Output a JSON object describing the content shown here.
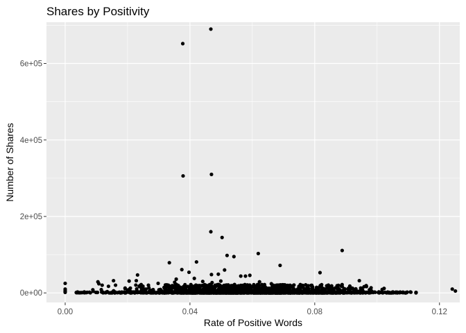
{
  "chart_data": {
    "type": "scatter",
    "title": "Shares by Positivity",
    "xlabel": "Rate of Positive Words",
    "ylabel": "Number of Shares",
    "xlim": [
      -0.006,
      0.1265
    ],
    "ylim": [
      -25000,
      708000
    ],
    "x_ticks": [
      0.0,
      0.04,
      0.08,
      0.12
    ],
    "x_tick_labels": [
      "0.00",
      "0.04",
      "0.08",
      "0.12"
    ],
    "y_ticks": [
      0,
      200000,
      400000,
      600000
    ],
    "y_tick_labels": [
      "0e+00",
      "2e+05",
      "4e+05",
      "6e+05"
    ],
    "grid": true,
    "colors": {
      "panel": "#ebebeb",
      "grid_major": "#ffffff",
      "point": "#000000"
    },
    "points": [
      [
        0.0467,
        690000
      ],
      [
        0.0377,
        652000
      ],
      [
        0.0469,
        310000
      ],
      [
        0.0378,
        306000
      ],
      [
        0.0467,
        160000
      ],
      [
        0.0503,
        145000
      ],
      [
        0.0888,
        111000
      ],
      [
        0.0619,
        103000
      ],
      [
        0.0519,
        98000
      ],
      [
        0.0541,
        95000
      ],
      [
        0.0421,
        81000
      ],
      [
        0.0334,
        79000
      ],
      [
        0.0689,
        72000
      ],
      [
        0.0374,
        61000
      ],
      [
        0.0511,
        60000
      ],
      [
        0.0397,
        54000
      ],
      [
        0.0817,
        53000
      ],
      [
        0.0232,
        47000
      ],
      [
        0.0469,
        48000
      ],
      [
        0.0491,
        49000
      ],
      [
        0.0592,
        46000
      ],
      [
        0.0578,
        44000
      ],
      [
        0.0563,
        44000
      ],
      [
        0.0414,
        38000
      ],
      [
        0.0356,
        36000
      ],
      [
        0.0943,
        32000
      ],
      [
        0.0155,
        32000
      ],
      [
        0.0205,
        31000
      ],
      [
        0.0228,
        32000
      ],
      [
        0.0105,
        29000
      ],
      [
        0.0623,
        29000
      ],
      [
        0.0,
        25000
      ],
      [
        0.0108,
        24000
      ],
      [
        0.0298,
        25000
      ],
      [
        0.0351,
        28000
      ],
      [
        0.0441,
        30000
      ],
      [
        0.0471,
        27000
      ],
      [
        0.0499,
        31000
      ],
      [
        0.0543,
        22000
      ],
      [
        0.0661,
        24000
      ],
      [
        0.0721,
        20000
      ],
      [
        0.0771,
        21000
      ],
      [
        0.0888,
        17000
      ],
      [
        0.1241,
        10000
      ],
      [
        0.1251,
        5000
      ],
      [
        0.0,
        10000
      ],
      [
        0.0,
        6000
      ],
      [
        0.0,
        3000
      ],
      [
        0.0,
        1500
      ]
    ],
    "dense_band": {
      "x_range": [
        0.003,
        0.1135
      ],
      "y_range": [
        0,
        22000
      ],
      "description": "many overlapping points concentrated near zero shares"
    }
  }
}
